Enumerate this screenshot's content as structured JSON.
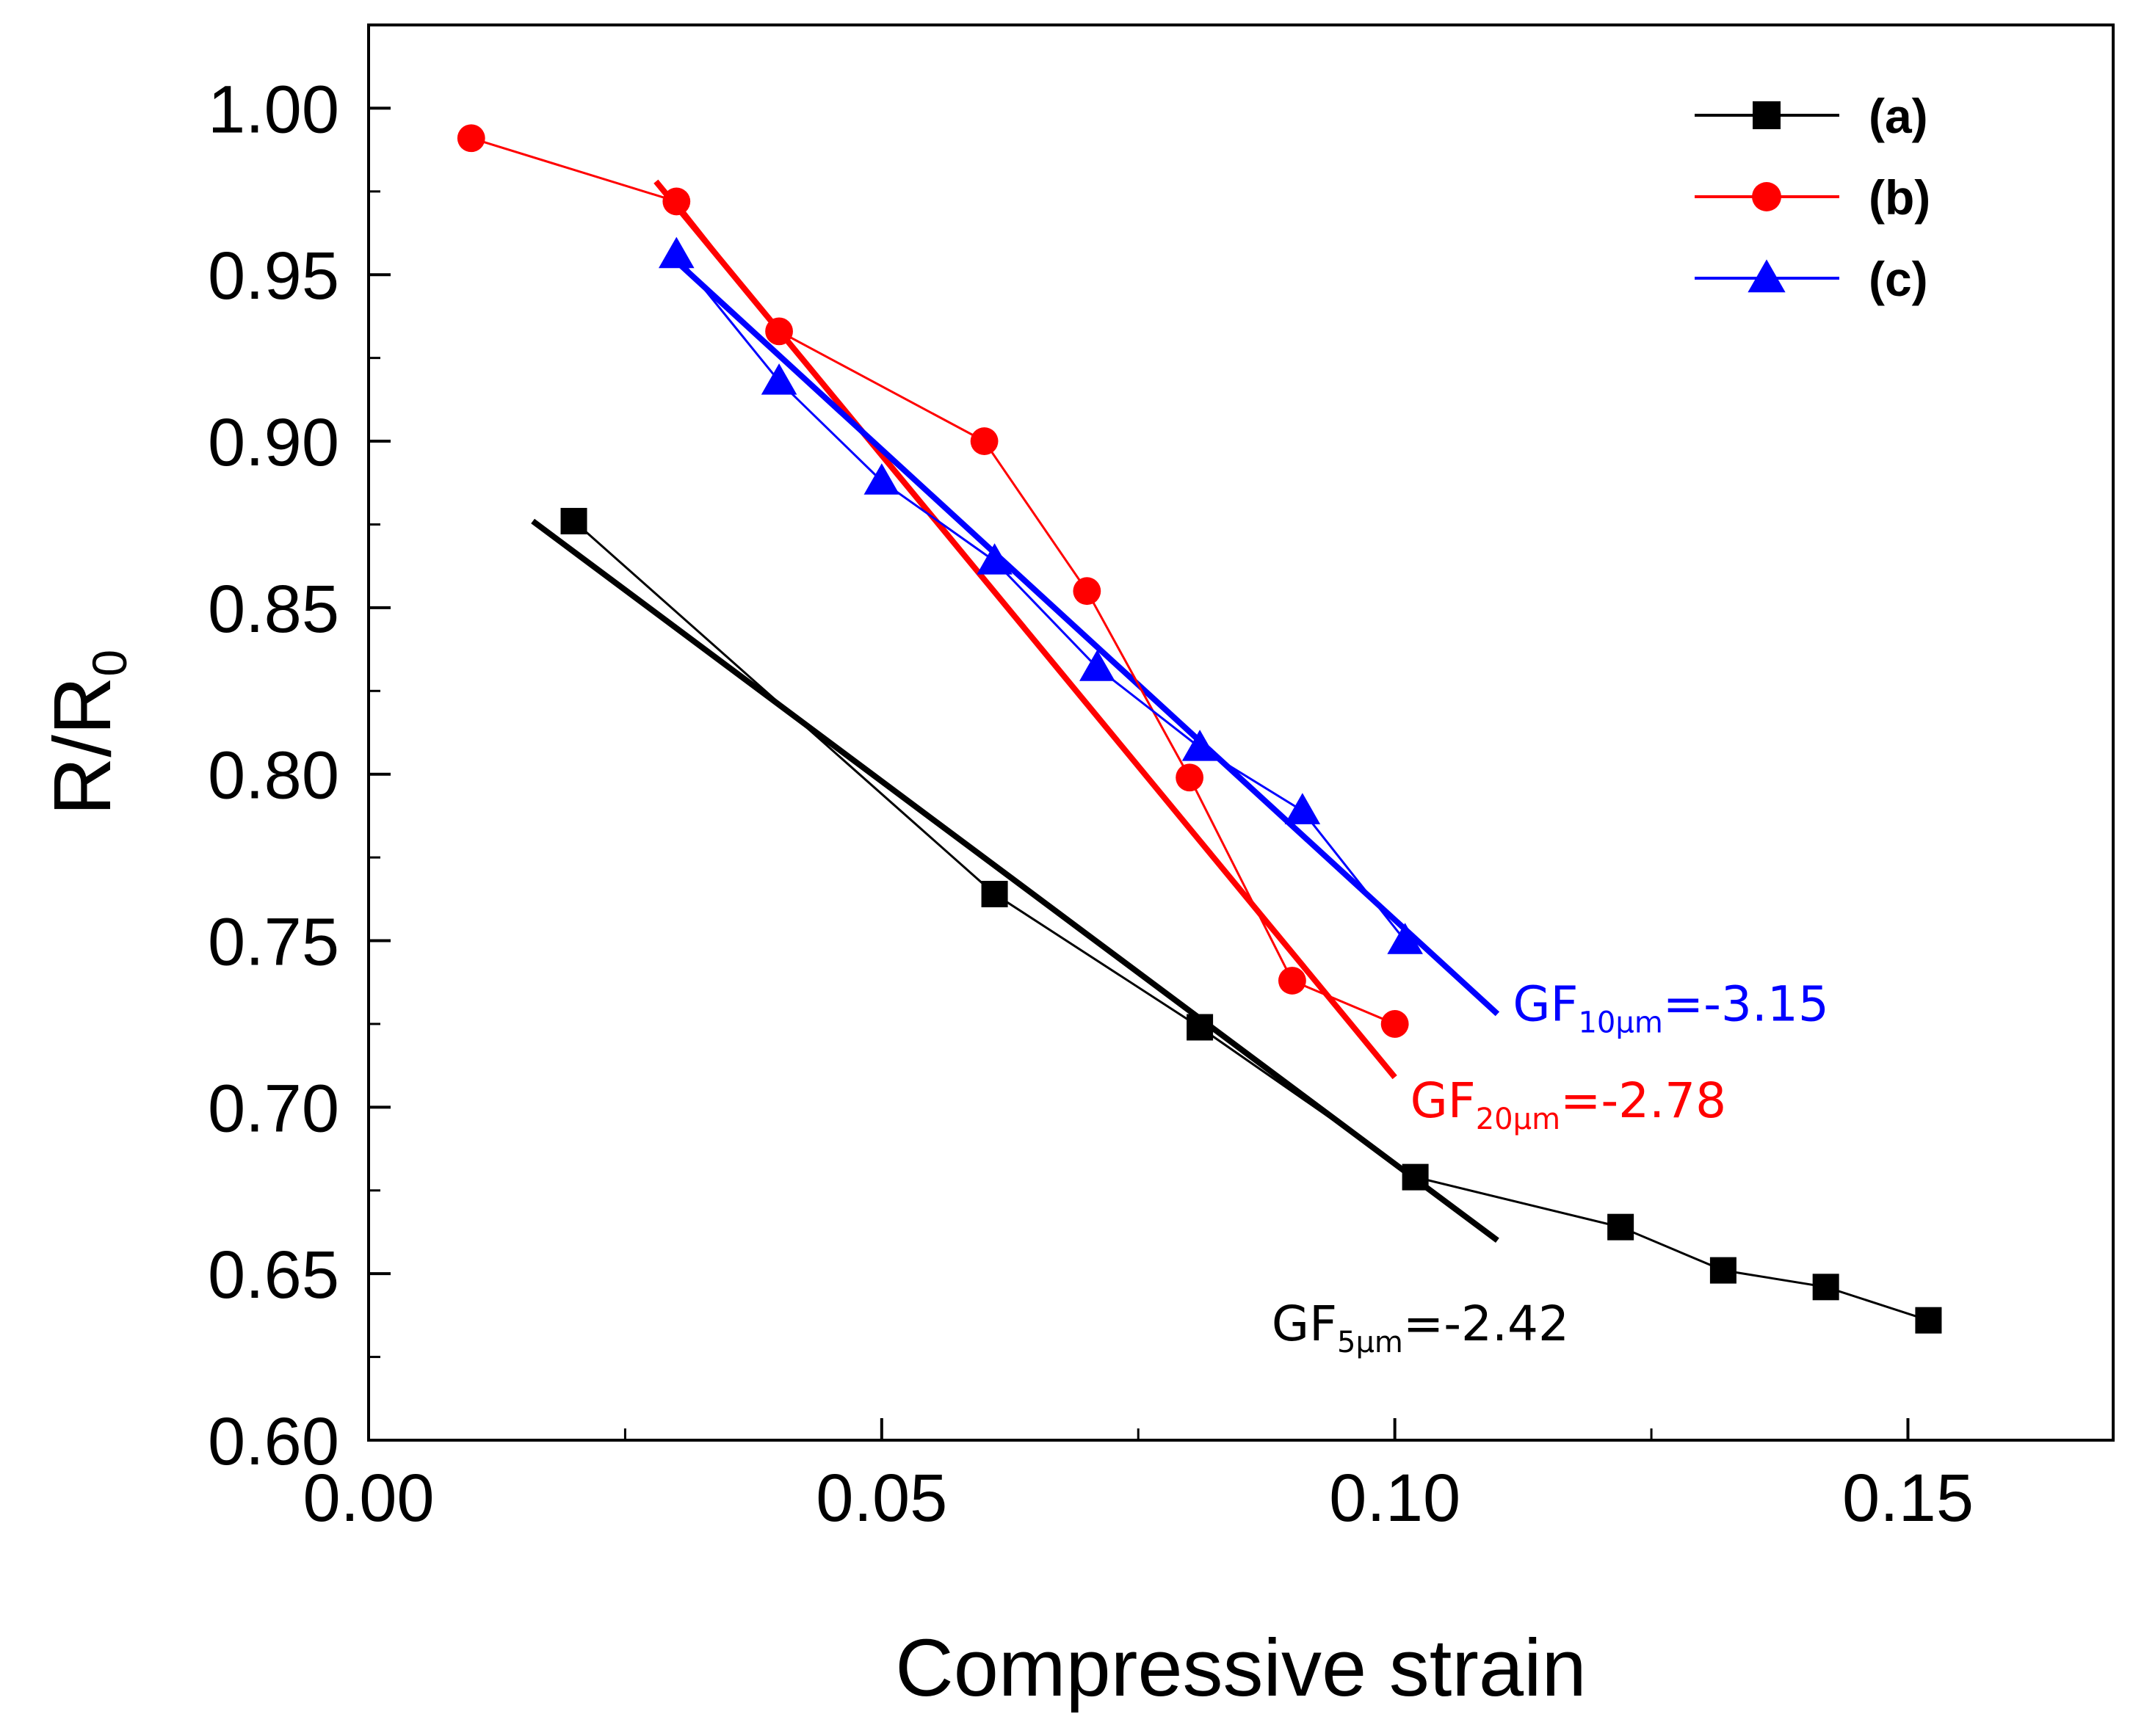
{
  "chart_data": {
    "type": "line",
    "xlabel": "Compressive strain",
    "ylabel_main": "R/R",
    "ylabel_sub": "0",
    "xlim": [
      0.0,
      0.17
    ],
    "ylim": [
      0.6,
      1.025
    ],
    "xticks": [
      0.0,
      0.05,
      0.1,
      0.15
    ],
    "xtick_labels": [
      "0.00",
      "0.05",
      "0.10",
      "0.15"
    ],
    "yticks": [
      0.6,
      0.65,
      0.7,
      0.75,
      0.8,
      0.85,
      0.9,
      0.95,
      1.0
    ],
    "ytick_labels": [
      "0.60",
      "0.65",
      "0.70",
      "0.75",
      "0.80",
      "0.85",
      "0.90",
      "0.95",
      "1.00"
    ],
    "legend_position": "top-right",
    "series": [
      {
        "name": "(a)",
        "color": "#000000",
        "marker": "square",
        "x": [
          0.02,
          0.061,
          0.081,
          0.102,
          0.122,
          0.132,
          0.142,
          0.152
        ],
        "y": [
          0.876,
          0.764,
          0.724,
          0.679,
          0.664,
          0.651,
          0.646,
          0.636
        ]
      },
      {
        "name": "(b)",
        "color": "#ff0000",
        "marker": "circle",
        "x": [
          0.01,
          0.03,
          0.04,
          0.06,
          0.07,
          0.08,
          0.09,
          0.1
        ],
        "y": [
          0.991,
          0.972,
          0.933,
          0.9,
          0.855,
          0.799,
          0.738,
          0.725
        ]
      },
      {
        "name": "(c)",
        "color": "#0000ff",
        "marker": "triangle",
        "x": [
          0.03,
          0.04,
          0.05,
          0.061,
          0.071,
          0.081,
          0.091,
          0.101
        ],
        "y": [
          0.956,
          0.918,
          0.888,
          0.864,
          0.832,
          0.808,
          0.789,
          0.75
        ]
      }
    ],
    "fit_lines": [
      {
        "series": "(a)",
        "color": "#000000",
        "x": [
          0.016,
          0.11
        ],
        "y": [
          0.876,
          0.66
        ]
      },
      {
        "series": "(b)",
        "color": "#ff0000",
        "x": [
          0.028,
          0.1
        ],
        "y": [
          0.978,
          0.709
        ]
      },
      {
        "series": "(c)",
        "color": "#0000ff",
        "x": [
          0.03,
          0.11
        ],
        "y": [
          0.954,
          0.728
        ]
      }
    ],
    "annotations": [
      {
        "id": "gf5",
        "prefix": "GF",
        "sub": "5μm",
        "suffix": "=-2.42",
        "color": "#000000",
        "x": 0.088,
        "y": 0.63
      },
      {
        "id": "gf20",
        "prefix": "GF",
        "sub": "20μm",
        "suffix": "=-2.78",
        "color": "#ff0000",
        "x": 0.1015,
        "y": 0.697
      },
      {
        "id": "gf10",
        "prefix": "GF",
        "sub": "10μm",
        "suffix": "=-3.15",
        "color": "#0000ff",
        "x": 0.1115,
        "y": 0.726
      }
    ]
  }
}
